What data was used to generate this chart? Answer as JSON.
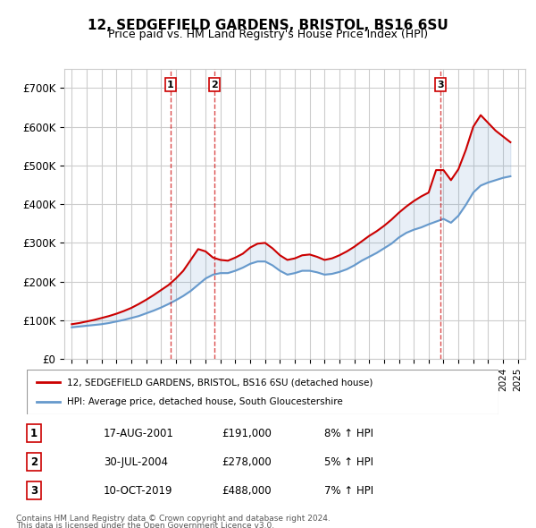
{
  "title": "12, SEDGEFIELD GARDENS, BRISTOL, BS16 6SU",
  "subtitle": "Price paid vs. HM Land Registry's House Price Index (HPI)",
  "xlim": [
    1994.5,
    2025.5
  ],
  "ylim": [
    0,
    750000
  ],
  "yticks": [
    0,
    100000,
    200000,
    300000,
    400000,
    500000,
    600000,
    700000
  ],
  "ytick_labels": [
    "£0",
    "£100K",
    "£200K",
    "£300K",
    "£400K",
    "£500K",
    "£600K",
    "£700K"
  ],
  "sale_dates": [
    2001.63,
    2004.58,
    2019.78
  ],
  "sale_prices": [
    191000,
    278000,
    488000
  ],
  "sale_labels": [
    "1",
    "2",
    "3"
  ],
  "legend_line1": "12, SEDGEFIELD GARDENS, BRISTOL, BS16 6SU (detached house)",
  "legend_line2": "HPI: Average price, detached house, South Gloucestershire",
  "table_rows": [
    [
      "1",
      "17-AUG-2001",
      "£191,000",
      "8% ↑ HPI"
    ],
    [
      "2",
      "30-JUL-2004",
      "£278,000",
      "5% ↑ HPI"
    ],
    [
      "3",
      "10-OCT-2019",
      "£488,000",
      "7% ↑ HPI"
    ]
  ],
  "footnote1": "Contains HM Land Registry data © Crown copyright and database right 2024.",
  "footnote2": "This data is licensed under the Open Government Licence v3.0.",
  "hpi_years": [
    1995,
    1995.5,
    1996,
    1996.5,
    1997,
    1997.5,
    1998,
    1998.5,
    1999,
    1999.5,
    2000,
    2000.5,
    2001,
    2001.5,
    2002,
    2002.5,
    2003,
    2003.5,
    2004,
    2004.5,
    2005,
    2005.5,
    2006,
    2006.5,
    2007,
    2007.5,
    2008,
    2008.5,
    2009,
    2009.5,
    2010,
    2010.5,
    2011,
    2011.5,
    2012,
    2012.5,
    2013,
    2013.5,
    2014,
    2014.5,
    2015,
    2015.5,
    2016,
    2016.5,
    2017,
    2017.5,
    2018,
    2018.5,
    2019,
    2019.5,
    2020,
    2020.5,
    2021,
    2021.5,
    2022,
    2022.5,
    2023,
    2023.5,
    2024,
    2024.5
  ],
  "hpi_values": [
    82000,
    84000,
    86000,
    88000,
    90000,
    93000,
    97000,
    101000,
    106000,
    111000,
    118000,
    125000,
    133000,
    142000,
    152000,
    163000,
    176000,
    192000,
    208000,
    218000,
    222000,
    222000,
    228000,
    236000,
    246000,
    252000,
    252000,
    242000,
    228000,
    218000,
    222000,
    228000,
    228000,
    224000,
    218000,
    220000,
    225000,
    232000,
    242000,
    254000,
    264000,
    274000,
    286000,
    298000,
    314000,
    326000,
    334000,
    340000,
    348000,
    355000,
    362000,
    352000,
    370000,
    398000,
    430000,
    448000,
    456000,
    462000,
    468000,
    472000
  ],
  "price_years": [
    1995,
    1995.5,
    1996,
    1996.5,
    1997,
    1997.5,
    1998,
    1998.5,
    1999,
    1999.5,
    2000,
    2000.5,
    2001,
    2001.5,
    2002,
    2002.5,
    2003,
    2003.5,
    2004,
    2004.5,
    2005,
    2005.5,
    2006,
    2006.5,
    2007,
    2007.5,
    2008,
    2008.5,
    2009,
    2009.5,
    2010,
    2010.5,
    2011,
    2011.5,
    2012,
    2012.5,
    2013,
    2013.5,
    2014,
    2014.5,
    2015,
    2015.5,
    2016,
    2016.5,
    2017,
    2017.5,
    2018,
    2018.5,
    2019,
    2019.5,
    2020,
    2020.5,
    2021,
    2021.5,
    2022,
    2022.5,
    2023,
    2023.5,
    2024,
    2024.5
  ],
  "price_values": [
    90000,
    93000,
    97000,
    101000,
    106000,
    111000,
    117000,
    124000,
    132000,
    142000,
    153000,
    165000,
    178000,
    191000,
    208000,
    228000,
    256000,
    284000,
    278000,
    262000,
    256000,
    254000,
    262000,
    272000,
    288000,
    298000,
    300000,
    286000,
    268000,
    256000,
    260000,
    268000,
    270000,
    264000,
    256000,
    260000,
    268000,
    278000,
    290000,
    304000,
    318000,
    330000,
    344000,
    360000,
    378000,
    394000,
    408000,
    420000,
    430000,
    488000,
    488000,
    462000,
    490000,
    540000,
    600000,
    630000,
    610000,
    590000,
    575000,
    560000
  ],
  "vline_years": [
    2001.63,
    2004.58,
    2019.78
  ],
  "background_color": "#ffffff",
  "plot_bg_color": "#ffffff",
  "grid_color": "#cccccc",
  "red_color": "#cc0000",
  "blue_color": "#6699cc"
}
